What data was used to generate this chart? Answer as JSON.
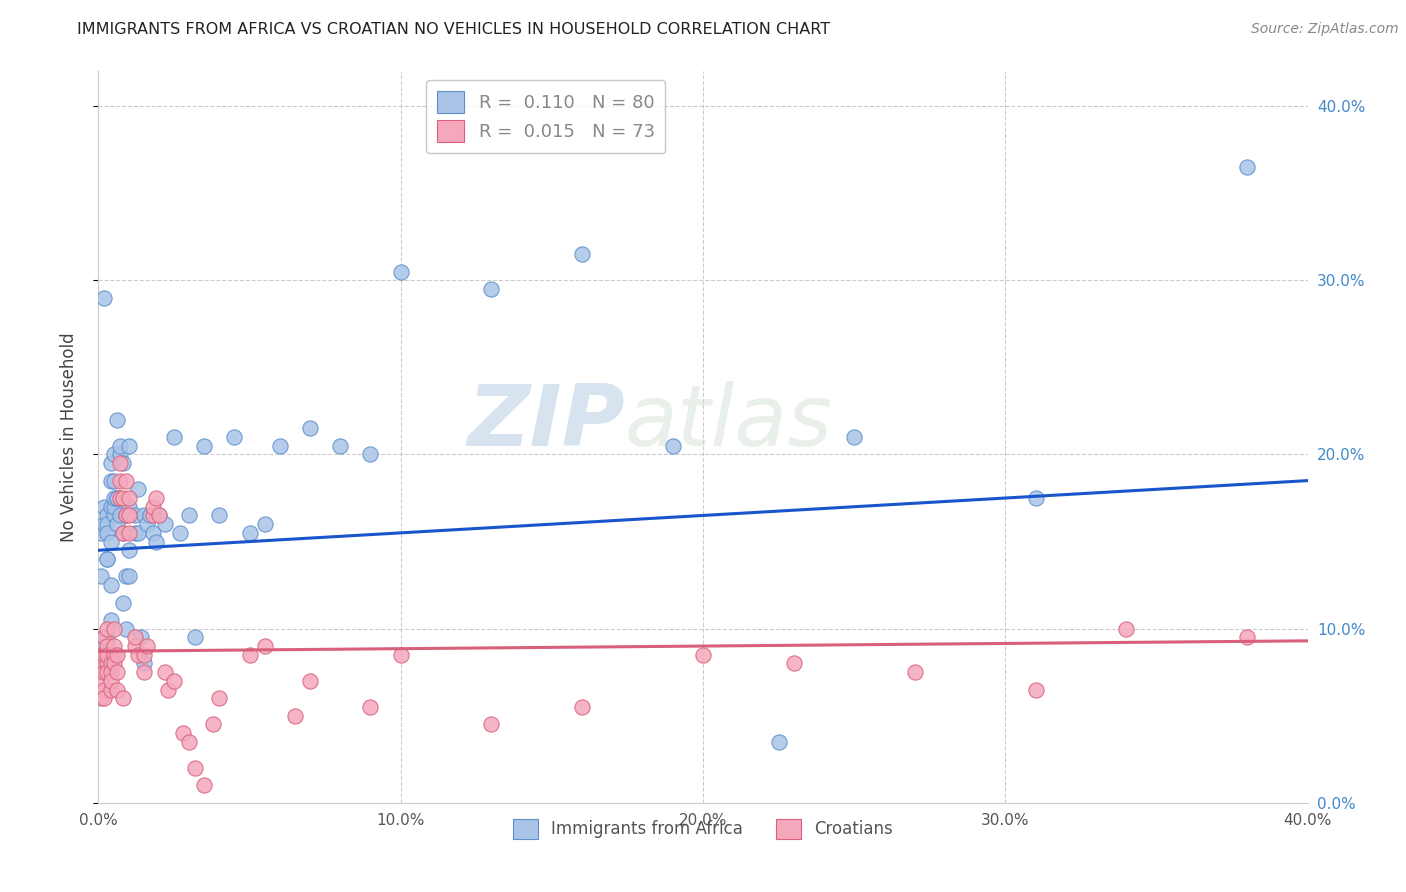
{
  "title": "IMMIGRANTS FROM AFRICA VS CROATIAN NO VEHICLES IN HOUSEHOLD CORRELATION CHART",
  "source": "Source: ZipAtlas.com",
  "ylabel": "No Vehicles in Household",
  "xlim": [
    0.0,
    0.4
  ],
  "ylim": [
    0.0,
    0.42
  ],
  "xticks": [
    0.0,
    0.1,
    0.2,
    0.3,
    0.4
  ],
  "yticks": [
    0.0,
    0.1,
    0.2,
    0.3,
    0.4
  ],
  "xtick_labels": [
    "0.0%",
    "10.0%",
    "20.0%",
    "30.0%",
    "40.0%"
  ],
  "ytick_labels_right": [
    "0.0%",
    "10.0%",
    "20.0%",
    "30.0%",
    "40.0%"
  ],
  "grid_color": "#cccccc",
  "background_color": "#ffffff",
  "series1_color": "#aac4e8",
  "series1_edge_color": "#5b8fcc",
  "series2_color": "#f5a8bc",
  "series2_edge_color": "#d9607a",
  "trendline1_color": "#1a55cc",
  "trendline2_color": "#d9607a",
  "R1": 0.11,
  "N1": 80,
  "R2": 0.015,
  "N2": 73,
  "legend_label1": "Immigrants from Africa",
  "legend_label2": "Croatians",
  "watermark_zip": "ZIP",
  "watermark_atlas": "atlas",
  "trendline1_x0": 0.0,
  "trendline1_y0": 0.145,
  "trendline1_x1": 0.4,
  "trendline1_y1": 0.185,
  "trendline2_x0": 0.0,
  "trendline2_y0": 0.087,
  "trendline2_x1": 0.4,
  "trendline2_y1": 0.093,
  "series1_x": [
    0.001,
    0.001,
    0.001,
    0.001,
    0.002,
    0.002,
    0.002,
    0.002,
    0.002,
    0.003,
    0.003,
    0.003,
    0.003,
    0.003,
    0.003,
    0.003,
    0.004,
    0.004,
    0.004,
    0.004,
    0.004,
    0.004,
    0.004,
    0.005,
    0.005,
    0.005,
    0.005,
    0.005,
    0.006,
    0.006,
    0.006,
    0.006,
    0.007,
    0.007,
    0.007,
    0.008,
    0.008,
    0.008,
    0.009,
    0.009,
    0.009,
    0.01,
    0.01,
    0.01,
    0.01,
    0.012,
    0.012,
    0.013,
    0.013,
    0.014,
    0.015,
    0.015,
    0.016,
    0.017,
    0.018,
    0.019,
    0.02,
    0.022,
    0.025,
    0.027,
    0.03,
    0.032,
    0.035,
    0.04,
    0.045,
    0.05,
    0.055,
    0.06,
    0.07,
    0.08,
    0.09,
    0.1,
    0.13,
    0.16,
    0.19,
    0.225,
    0.25,
    0.31,
    0.38
  ],
  "series1_y": [
    0.085,
    0.09,
    0.155,
    0.13,
    0.095,
    0.08,
    0.16,
    0.17,
    0.29,
    0.095,
    0.14,
    0.085,
    0.165,
    0.16,
    0.14,
    0.155,
    0.085,
    0.195,
    0.125,
    0.105,
    0.15,
    0.17,
    0.185,
    0.165,
    0.2,
    0.17,
    0.185,
    0.175,
    0.175,
    0.16,
    0.22,
    0.175,
    0.2,
    0.165,
    0.205,
    0.155,
    0.195,
    0.115,
    0.1,
    0.13,
    0.165,
    0.145,
    0.205,
    0.17,
    0.13,
    0.155,
    0.165,
    0.18,
    0.155,
    0.095,
    0.08,
    0.165,
    0.16,
    0.165,
    0.155,
    0.15,
    0.165,
    0.16,
    0.21,
    0.155,
    0.165,
    0.095,
    0.205,
    0.165,
    0.21,
    0.155,
    0.16,
    0.205,
    0.215,
    0.205,
    0.2,
    0.305,
    0.295,
    0.315,
    0.205,
    0.035,
    0.21,
    0.175,
    0.365
  ],
  "series2_x": [
    0.001,
    0.001,
    0.001,
    0.001,
    0.001,
    0.002,
    0.002,
    0.002,
    0.002,
    0.002,
    0.002,
    0.003,
    0.003,
    0.003,
    0.003,
    0.003,
    0.004,
    0.004,
    0.004,
    0.004,
    0.005,
    0.005,
    0.005,
    0.005,
    0.006,
    0.006,
    0.006,
    0.007,
    0.007,
    0.007,
    0.008,
    0.008,
    0.008,
    0.009,
    0.009,
    0.01,
    0.01,
    0.01,
    0.012,
    0.012,
    0.013,
    0.015,
    0.015,
    0.016,
    0.018,
    0.018,
    0.019,
    0.02,
    0.022,
    0.023,
    0.025,
    0.028,
    0.03,
    0.032,
    0.035,
    0.038,
    0.04,
    0.05,
    0.055,
    0.065,
    0.07,
    0.09,
    0.1,
    0.13,
    0.16,
    0.2,
    0.23,
    0.27,
    0.31,
    0.34,
    0.38
  ],
  "series2_y": [
    0.085,
    0.075,
    0.06,
    0.07,
    0.085,
    0.095,
    0.08,
    0.075,
    0.065,
    0.085,
    0.06,
    0.08,
    0.1,
    0.09,
    0.075,
    0.085,
    0.065,
    0.08,
    0.075,
    0.07,
    0.085,
    0.08,
    0.1,
    0.09,
    0.075,
    0.085,
    0.065,
    0.195,
    0.175,
    0.185,
    0.155,
    0.175,
    0.06,
    0.165,
    0.185,
    0.175,
    0.165,
    0.155,
    0.09,
    0.095,
    0.085,
    0.085,
    0.075,
    0.09,
    0.165,
    0.17,
    0.175,
    0.165,
    0.075,
    0.065,
    0.07,
    0.04,
    0.035,
    0.02,
    0.01,
    0.045,
    0.06,
    0.085,
    0.09,
    0.05,
    0.07,
    0.055,
    0.085,
    0.045,
    0.055,
    0.085,
    0.08,
    0.075,
    0.065,
    0.1,
    0.095
  ]
}
